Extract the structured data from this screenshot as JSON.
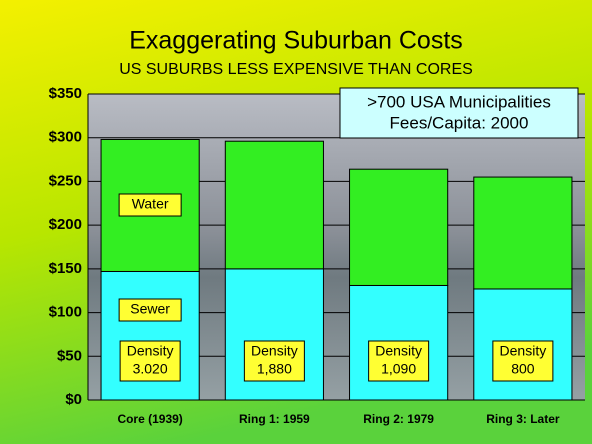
{
  "chart_data": {
    "type": "stacked_bar",
    "title": "Exaggerating Suburban Costs",
    "subtitle": "US SUBURBS LESS EXPENSIVE THAN CORES",
    "categories": [
      "Core (1939)",
      "Ring 1: 1959",
      "Ring 2: 1979",
      "Ring 3: Later"
    ],
    "series": [
      {
        "name": "Sewer",
        "color": "#33ffff",
        "values": [
          147,
          150,
          131,
          127
        ]
      },
      {
        "name": "Water",
        "color": "#33ee22",
        "values": [
          151,
          146,
          133,
          128
        ]
      }
    ],
    "ylim": [
      0,
      350
    ],
    "yticks": [
      {
        "value": 0,
        "label": "$0"
      },
      {
        "value": 50,
        "label": "$50"
      },
      {
        "value": 100,
        "label": "$100"
      },
      {
        "value": 150,
        "label": "$150"
      },
      {
        "value": 200,
        "label": "$200"
      },
      {
        "value": 250,
        "label": "$250"
      },
      {
        "value": 300,
        "label": "$300"
      },
      {
        "value": 350,
        "label": "$350"
      }
    ],
    "grid": true,
    "density_title": "Density",
    "density_labels": [
      "3.020",
      "1,880",
      "1,090",
      "800"
    ],
    "info_box": [
      ">700 USA Municipalities",
      "Fees/Capita: 2000"
    ]
  }
}
